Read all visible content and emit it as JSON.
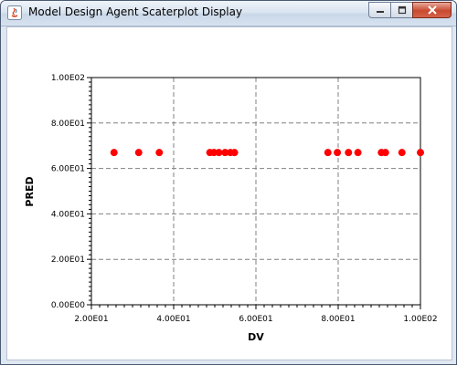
{
  "window": {
    "title": "Model Design Agent Scaterplot Display"
  },
  "chart_data": {
    "type": "scatter",
    "title": "",
    "xlabel": "DV",
    "ylabel": "PRED",
    "xlim": [
      20,
      100
    ],
    "ylim": [
      0,
      100
    ],
    "x_ticks": [
      20,
      40,
      60,
      80,
      100
    ],
    "x_tick_labels": [
      "2.00E01",
      "4.00E01",
      "6.00E01",
      "8.00E01",
      "1.00E02"
    ],
    "y_ticks": [
      0,
      20,
      40,
      60,
      80,
      100
    ],
    "y_tick_labels": [
      "0.00E00",
      "2.00E01",
      "4.00E01",
      "6.00E01",
      "8.00E01",
      "1.00E02"
    ],
    "grid": true,
    "series": [
      {
        "color": "#ff0000",
        "points": [
          {
            "x": 25.5,
            "y": 67
          },
          {
            "x": 31.5,
            "y": 67
          },
          {
            "x": 36.5,
            "y": 67
          },
          {
            "x": 48.8,
            "y": 67
          },
          {
            "x": 49.8,
            "y": 67
          },
          {
            "x": 51.0,
            "y": 67
          },
          {
            "x": 52.5,
            "y": 67
          },
          {
            "x": 53.8,
            "y": 67
          },
          {
            "x": 54.8,
            "y": 67
          },
          {
            "x": 77.5,
            "y": 67
          },
          {
            "x": 79.8,
            "y": 67
          },
          {
            "x": 82.5,
            "y": 67
          },
          {
            "x": 84.8,
            "y": 67
          },
          {
            "x": 90.5,
            "y": 67
          },
          {
            "x": 91.5,
            "y": 67
          },
          {
            "x": 95.5,
            "y": 67
          },
          {
            "x": 100.0,
            "y": 67
          }
        ]
      }
    ]
  }
}
